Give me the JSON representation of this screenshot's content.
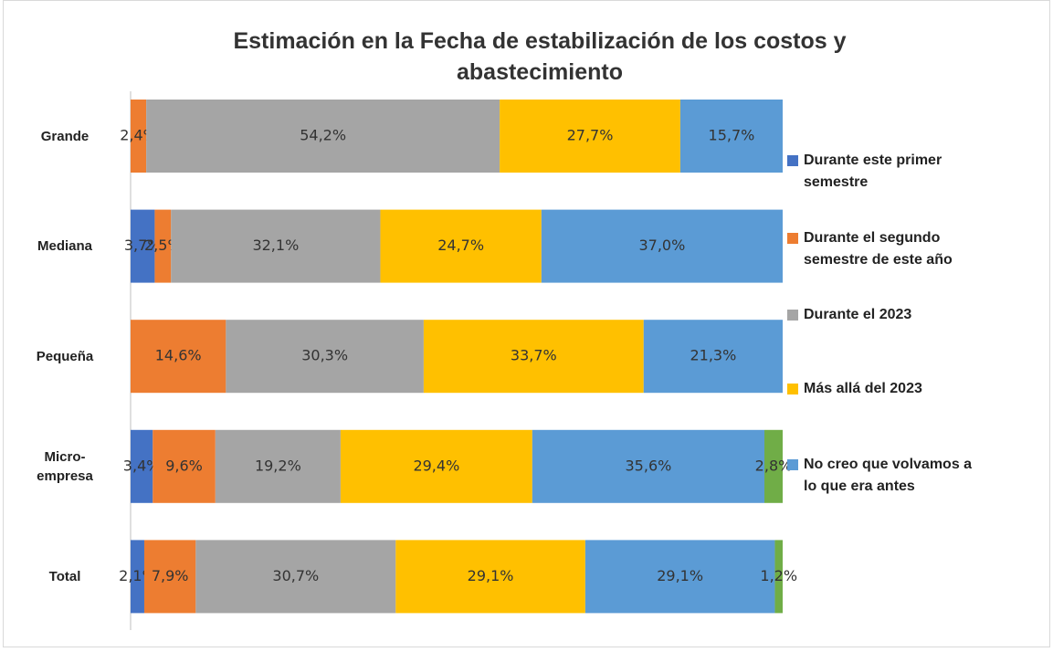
{
  "chart_data": {
    "type": "stacked-bar-100",
    "orientation": "horizontal",
    "title": "Estimación en la Fecha de estabilización de los costos y abastecimiento",
    "categories": [
      "Grande",
      "Mediana",
      "Pequeña",
      "Micro-empresa",
      "Total"
    ],
    "series": [
      {
        "name": "Durante este primer semestre",
        "color": "#4472c4",
        "values": [
          null,
          3.7,
          null,
          3.4,
          2.1
        ],
        "value_labels": [
          null,
          "3,7%",
          null,
          "3,4%",
          "2,1%"
        ]
      },
      {
        "name": "Durante el segundo semestre de este año",
        "color": "#ed7d31",
        "values": [
          2.4,
          2.5,
          14.6,
          9.6,
          7.9
        ],
        "value_labels": [
          "2,4%",
          "2,5%",
          "14,6%",
          "9,6%",
          "7,9%"
        ]
      },
      {
        "name": "Durante el 2023",
        "color": "#a5a5a5",
        "values": [
          54.2,
          32.1,
          30.3,
          19.2,
          30.7
        ],
        "value_labels": [
          "54,2%",
          "32,1%",
          "30,3%",
          "19,2%",
          "30,7%"
        ]
      },
      {
        "name": "Más allá del 2023",
        "color": "#ffc000",
        "values": [
          27.7,
          24.7,
          33.7,
          29.4,
          29.1
        ],
        "value_labels": [
          "27,7%",
          "24,7%",
          "33,7%",
          "29,4%",
          "29,1%"
        ]
      },
      {
        "name": "No creo que volvamos a lo que era antes",
        "color": "#5b9bd5",
        "values": [
          15.7,
          37.0,
          21.3,
          35.6,
          29.1
        ],
        "value_labels": [
          "15,7%",
          "37,0%",
          "21,3%",
          "35,6%",
          "29,1%"
        ]
      },
      {
        "color": "#70ad47",
        "values": [
          null,
          null,
          null,
          2.8,
          1.2
        ],
        "value_labels": [
          null,
          null,
          null,
          "2,8%",
          "1,2%"
        ]
      }
    ]
  }
}
